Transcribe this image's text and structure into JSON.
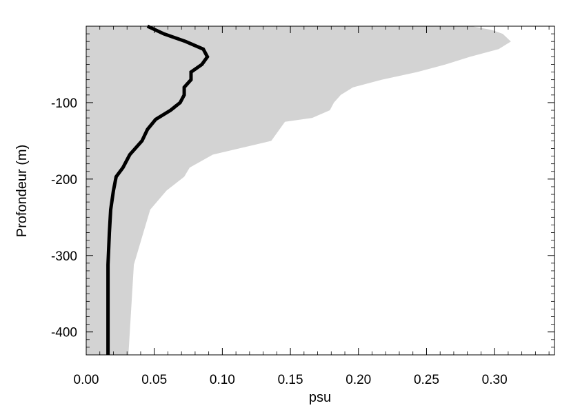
{
  "chart_data": {
    "type": "line",
    "title": "",
    "xlabel": "psu",
    "ylabel": "Profondeur (m)",
    "xlim": [
      0,
      0.344
    ],
    "ylim": [
      -430,
      0
    ],
    "grid": false,
    "x_ticks": [
      0.0,
      0.05,
      0.1,
      0.15,
      0.2,
      0.25,
      0.3
    ],
    "x_tick_labels": [
      "0.00",
      "0.05",
      "0.10",
      "0.15",
      "0.20",
      "0.25",
      "0.30"
    ],
    "y_ticks": [
      -100,
      -200,
      -300,
      -400
    ],
    "y_tick_labels": [
      "-100",
      "-200",
      "-300",
      "-400"
    ],
    "colors": {
      "band": "#d3d3d3",
      "line": "#000000"
    },
    "series": [
      {
        "kind": "band",
        "points": [
          [
            0.0,
            0
          ],
          [
            0.283,
            0
          ],
          [
            0.298,
            -5
          ],
          [
            0.306,
            -10
          ],
          [
            0.312,
            -20
          ],
          [
            0.303,
            -30
          ],
          [
            0.282,
            -40
          ],
          [
            0.264,
            -50
          ],
          [
            0.243,
            -60
          ],
          [
            0.217,
            -70
          ],
          [
            0.196,
            -80
          ],
          [
            0.187,
            -90
          ],
          [
            0.182,
            -100
          ],
          [
            0.179,
            -110
          ],
          [
            0.166,
            -120
          ],
          [
            0.146,
            -125
          ],
          [
            0.142,
            -135
          ],
          [
            0.136,
            -150
          ],
          [
            0.093,
            -168
          ],
          [
            0.076,
            -185
          ],
          [
            0.072,
            -197
          ],
          [
            0.059,
            -215
          ],
          [
            0.047,
            -240
          ],
          [
            0.042,
            -270
          ],
          [
            0.035,
            -312
          ],
          [
            0.031,
            -430
          ],
          [
            0.0,
            -430
          ]
        ]
      },
      {
        "kind": "line",
        "points": [
          [
            0.045,
            0
          ],
          [
            0.057,
            -10
          ],
          [
            0.073,
            -20
          ],
          [
            0.086,
            -30
          ],
          [
            0.089,
            -40
          ],
          [
            0.085,
            -50
          ],
          [
            0.077,
            -60
          ],
          [
            0.077,
            -70
          ],
          [
            0.072,
            -80
          ],
          [
            0.072,
            -90
          ],
          [
            0.069,
            -100
          ],
          [
            0.062,
            -110
          ],
          [
            0.051,
            -122
          ],
          [
            0.045,
            -135
          ],
          [
            0.041,
            -150
          ],
          [
            0.032,
            -168
          ],
          [
            0.027,
            -185
          ],
          [
            0.022,
            -197
          ],
          [
            0.02,
            -215
          ],
          [
            0.018,
            -240
          ],
          [
            0.017,
            -270
          ],
          [
            0.016,
            -312
          ],
          [
            0.016,
            -350
          ],
          [
            0.016,
            -430
          ]
        ]
      }
    ]
  }
}
